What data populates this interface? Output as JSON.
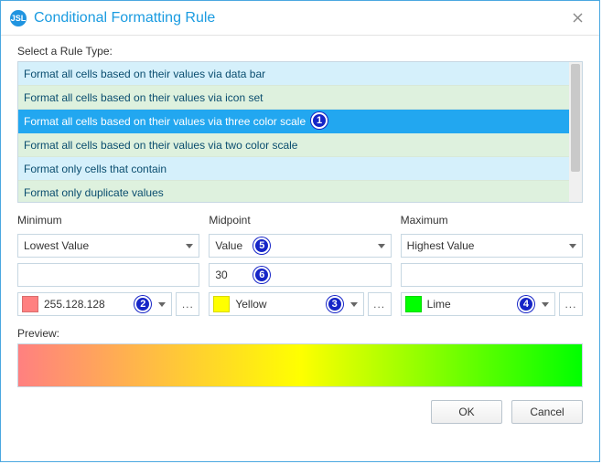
{
  "title": "Conditional Formatting Rule",
  "section_label": "Select a Rule Type:",
  "rules": [
    "Format all cells based on their values via data bar",
    "Format all cells based on their values via icon set",
    "Format all cells based on their values via three color scale",
    "Format all cells based on their values via two color scale",
    "Format only cells that contain",
    "Format only duplicate values"
  ],
  "selected_rule_index": 2,
  "columns": {
    "min": {
      "label": "Minimum",
      "type": "Lowest Value",
      "value": "",
      "color_label": "255.128.128",
      "color_hex": "#ff8080"
    },
    "mid": {
      "label": "Midpoint",
      "type": "Value",
      "value": "30",
      "color_label": "Yellow",
      "color_hex": "#ffff00"
    },
    "max": {
      "label": "Maximum",
      "type": "Highest Value",
      "value": "",
      "color_label": "Lime",
      "color_hex": "#00ff00"
    }
  },
  "preview_label": "Preview:",
  "preview_gradient": {
    "stops": [
      "#ff8080",
      "#ffff00",
      "#00ff00"
    ]
  },
  "buttons": {
    "ok": "OK",
    "cancel": "Cancel"
  },
  "callouts": {
    "1": "1",
    "2": "2",
    "3": "3",
    "4": "4",
    "5": "5",
    "6": "6"
  }
}
